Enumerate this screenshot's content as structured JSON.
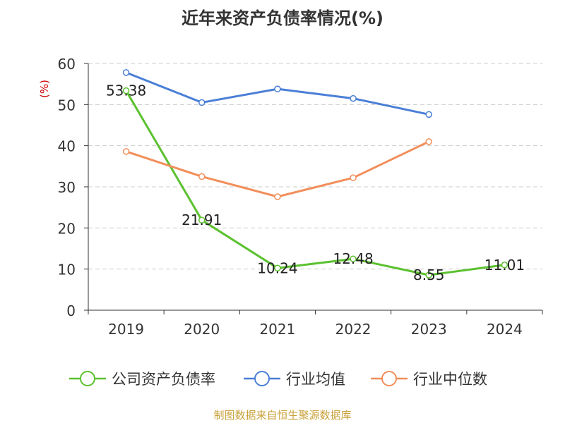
{
  "chart_data": {
    "type": "line",
    "title": "近年来资产负债率情况(%)",
    "ylabel": "(%)",
    "xlabel": "",
    "categories": [
      "2019",
      "2020",
      "2021",
      "2022",
      "2023",
      "2024"
    ],
    "ylim": [
      0,
      60
    ],
    "yticks": [
      0,
      10,
      20,
      30,
      40,
      50,
      60
    ],
    "grid": true,
    "legend_position": "bottom",
    "series": [
      {
        "name": "公司资产负债率",
        "color": "#5bc12f",
        "values": [
          53.38,
          21.91,
          10.24,
          12.48,
          8.55,
          11.01
        ],
        "labels": [
          "53.38",
          "21.91",
          "10.24",
          "12.48",
          "8.55",
          "11.01"
        ]
      },
      {
        "name": "行业均值",
        "color": "#4a7fd6",
        "values": [
          57.8,
          50.5,
          53.8,
          51.5,
          47.6,
          null
        ]
      },
      {
        "name": "行业中位数",
        "color": "#f28e5a",
        "values": [
          38.6,
          32.5,
          27.6,
          32.2,
          41.0,
          null
        ]
      }
    ]
  },
  "source": "制图数据来自恒生聚源数据库"
}
